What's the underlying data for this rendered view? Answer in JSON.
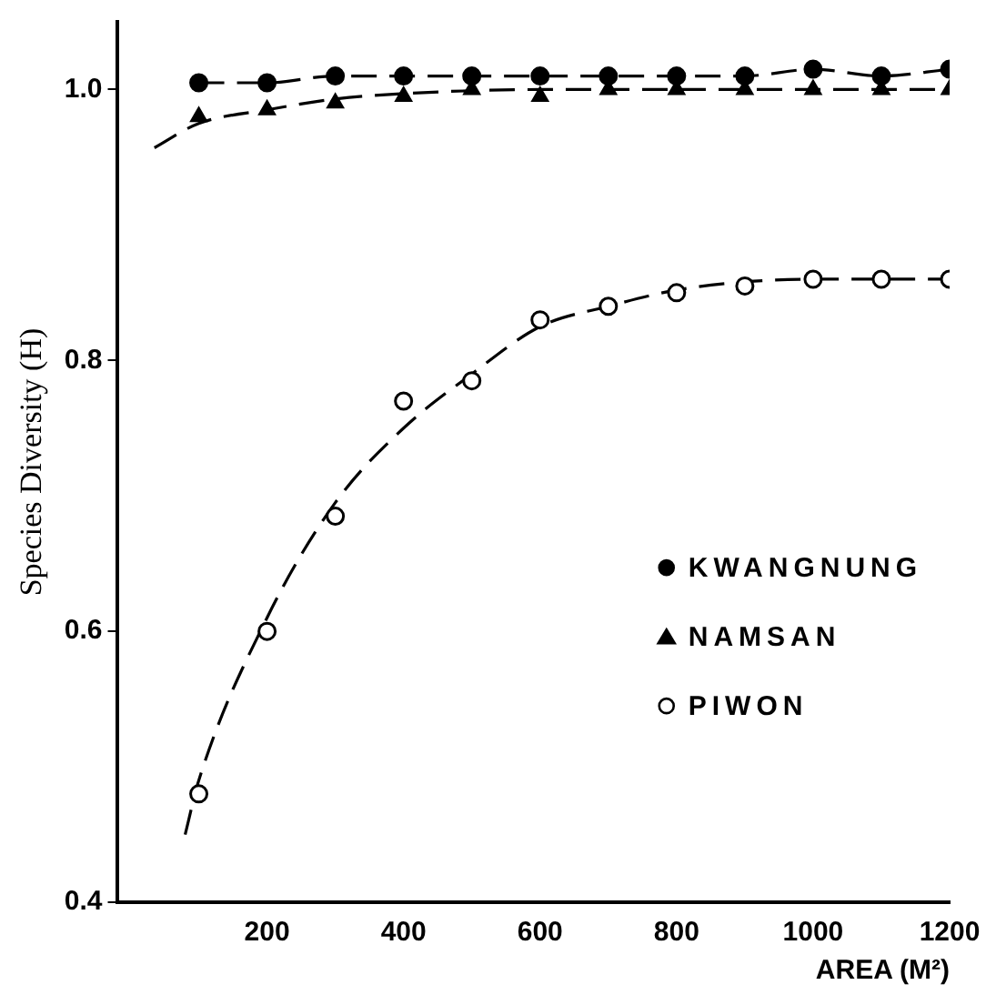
{
  "chart_data": {
    "type": "scatter",
    "xlabel": "AREA (M²)",
    "ylabel": "Species Diversity (H)",
    "xlim": [
      -20,
      1200
    ],
    "xticks": [
      200,
      400,
      600,
      800,
      1000,
      1200
    ],
    "ylim": [
      0.4,
      1.05
    ],
    "yticks": [
      {
        "value": 0.4,
        "label": "0.4"
      },
      {
        "value": 0.6,
        "label": "0.6"
      },
      {
        "value": 0.8,
        "label": "0.8"
      },
      {
        "value": 1.0,
        "label": "1.0"
      }
    ],
    "grid": false,
    "legend": "right",
    "series": [
      {
        "name": "KWANGNUNG",
        "color": "#000000",
        "marker": "circle",
        "x": [
          100,
          200,
          300,
          400,
          500,
          600,
          700,
          800,
          900,
          1000,
          1100,
          1200
        ],
        "values": [
          1.005,
          1.005,
          1.01,
          1.01,
          1.01,
          1.01,
          1.01,
          1.01,
          1.01,
          1.015,
          1.01,
          1.015
        ]
      },
      {
        "name": "NAMSAN",
        "color": "#000000",
        "marker": "triangle",
        "x": [
          100,
          200,
          300,
          400,
          500,
          600,
          700,
          800,
          900,
          1000,
          1100,
          1200
        ],
        "values": [
          0.98,
          0.985,
          0.99,
          0.995,
          1.0,
          0.995,
          1.0,
          1.0,
          1.0,
          1.0,
          1.0,
          1.0
        ]
      },
      {
        "name": "PIWON",
        "color": "#ffffff",
        "marker": "circle",
        "x": [
          100,
          200,
          300,
          400,
          500,
          600,
          700,
          800,
          900,
          1000,
          1100,
          1200
        ],
        "values": [
          0.48,
          0.6,
          0.685,
          0.77,
          0.785,
          0.83,
          0.84,
          0.85,
          0.855,
          0.86,
          0.86,
          0.86
        ]
      },
      {
        "type": "line",
        "color": "#000000",
        "marker": "none",
        "line_style": "dashed",
        "x": [
          100,
          200,
          300,
          400,
          500,
          600,
          700,
          800,
          900,
          1000,
          1100,
          1200
        ],
        "values": [
          1.005,
          1.005,
          1.01,
          1.01,
          1.01,
          1.01,
          1.01,
          1.01,
          1.01,
          1.015,
          1.01,
          1.015
        ]
      },
      {
        "type": "line",
        "color": "#000000",
        "marker": "none",
        "line_style": "dashed",
        "x": [
          35,
          100,
          200,
          300,
          400,
          600,
          800,
          1000,
          1200
        ],
        "values": [
          0.957,
          0.975,
          0.985,
          0.993,
          0.997,
          1.0,
          1.0,
          1.0,
          1.0
        ]
      },
      {
        "type": "line",
        "color": "#000000",
        "marker": "none",
        "line_style": "dashed",
        "x": [
          80,
          100,
          200,
          300,
          400,
          500,
          600,
          700,
          800,
          900,
          1000,
          1200
        ],
        "values": [
          0.45,
          0.49,
          0.61,
          0.695,
          0.75,
          0.79,
          0.825,
          0.84,
          0.852,
          0.858,
          0.86,
          0.86
        ]
      }
    ]
  }
}
